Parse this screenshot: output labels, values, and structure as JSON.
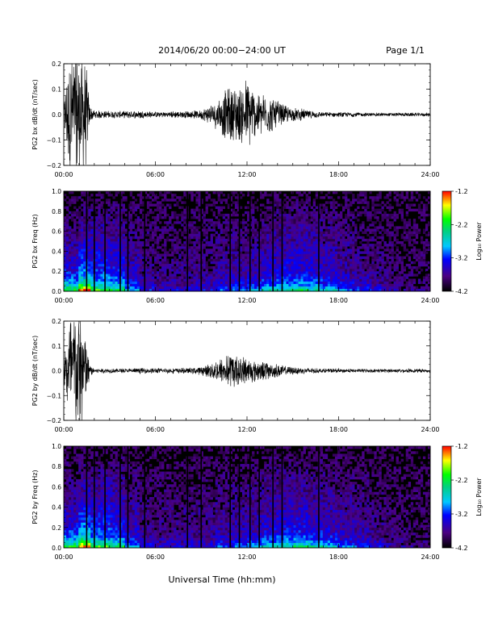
{
  "header": {
    "title": "2014/06/20  00:00−24:00 UT",
    "page": "Page 1/1"
  },
  "xlabel": "Universal Time (hh:mm)",
  "colorbar": {
    "label": "Log₁₀ Power",
    "ticks": [
      "-1.2",
      "-2.2",
      "-3.2",
      "-4.2"
    ]
  },
  "chart_data": [
    {
      "type": "line",
      "ylabel": "PG2 bx dB/dt (nT/sec)",
      "xlim": [
        0,
        24
      ],
      "ylim": [
        -0.2,
        0.2
      ],
      "xticks": [
        "00:00",
        "06:00",
        "12:00",
        "18:00",
        "24:00"
      ],
      "yticks": [
        "0.2",
        "0.1",
        "0.0",
        "−0.1",
        "−0.2"
      ],
      "envelope": {
        "x": [
          0,
          0.3,
          0.5,
          1.0,
          1.5,
          1.7,
          2,
          3,
          4,
          5,
          6,
          7,
          8,
          9,
          9.5,
          10,
          10.5,
          11,
          11.5,
          12,
          12.5,
          13,
          13.5,
          14,
          14.5,
          15,
          16,
          17,
          18,
          19,
          20,
          22,
          24
        ],
        "amp": [
          0.05,
          0.22,
          0.3,
          0.3,
          0.2,
          0.04,
          0.02,
          0.015,
          0.015,
          0.018,
          0.012,
          0.015,
          0.015,
          0.02,
          0.04,
          0.06,
          0.1,
          0.13,
          0.12,
          0.16,
          0.11,
          0.09,
          0.08,
          0.06,
          0.04,
          0.03,
          0.02,
          0.01,
          0.01,
          0.01,
          0.008,
          0.008,
          0.008
        ]
      }
    },
    {
      "type": "heatmap",
      "ylabel": "PG2 bx Freq (Hz)",
      "xlim": [
        0,
        24
      ],
      "ylim": [
        0,
        1.0
      ],
      "zlim": [
        -4.2,
        -1.2
      ],
      "xticks": [
        "00:00",
        "06:00",
        "12:00",
        "18:00",
        "24:00"
      ],
      "yticks": [
        "1.0",
        "0.8",
        "0.6",
        "0.4",
        "0.2",
        "0.0"
      ],
      "gaps": [
        1.5,
        2.0,
        2.7,
        3.7,
        4.2,
        5.3,
        8.1,
        9.0,
        10.9,
        11.5,
        12.2,
        12.8,
        13.7,
        14.3,
        16.7
      ]
    },
    {
      "type": "line",
      "ylabel": "PG2 by dB/dt (nT/sec)",
      "xlim": [
        0,
        24
      ],
      "ylim": [
        -0.2,
        0.2
      ],
      "xticks": [
        "00:00",
        "06:00",
        "12:00",
        "18:00",
        "24:00"
      ],
      "yticks": [
        "0.2",
        "0.1",
        "0.0",
        "−0.1",
        "−0.2"
      ],
      "envelope": {
        "x": [
          0,
          0.3,
          0.5,
          1.0,
          1.5,
          1.7,
          2,
          3,
          4,
          5,
          6,
          7,
          8,
          9,
          9.5,
          10,
          10.5,
          11,
          11.5,
          12,
          12.5,
          13,
          13.5,
          14,
          14.5,
          15,
          16,
          17,
          18,
          19,
          20,
          22,
          24
        ],
        "amp": [
          0.06,
          0.2,
          0.3,
          0.3,
          0.15,
          0.03,
          0.012,
          0.01,
          0.01,
          0.012,
          0.012,
          0.012,
          0.012,
          0.018,
          0.03,
          0.05,
          0.06,
          0.08,
          0.07,
          0.06,
          0.05,
          0.045,
          0.035,
          0.03,
          0.02,
          0.018,
          0.012,
          0.01,
          0.01,
          0.008,
          0.008,
          0.008,
          0.008
        ]
      }
    },
    {
      "type": "heatmap",
      "ylabel": "PG2 by Freq (Hz)",
      "xlim": [
        0,
        24
      ],
      "ylim": [
        0,
        1.0
      ],
      "zlim": [
        -4.2,
        -1.2
      ],
      "xticks": [
        "00:00",
        "06:00",
        "12:00",
        "18:00",
        "24:00"
      ],
      "yticks": [
        "1.0",
        "0.8",
        "0.6",
        "0.4",
        "0.2",
        "0.0"
      ],
      "gaps": [
        1.5,
        2.0,
        2.7,
        3.7,
        4.2,
        5.3,
        8.1,
        9.0,
        10.9,
        11.5,
        12.2,
        12.8,
        13.7,
        14.3,
        16.7
      ]
    }
  ]
}
